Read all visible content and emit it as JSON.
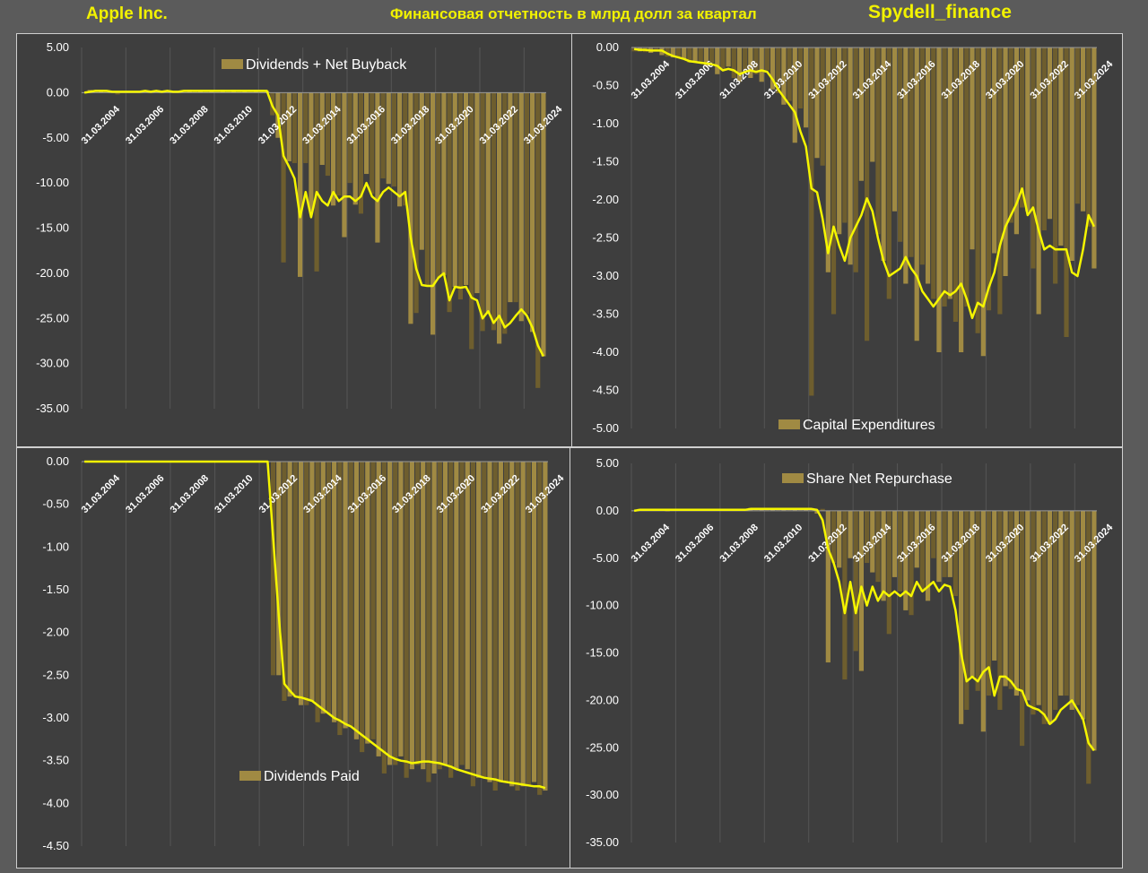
{
  "header": {
    "company": "Apple Inc.",
    "subtitle": "Финансовая отчетность в млрд долл за квартал",
    "source": "Spydell_finance"
  },
  "colors": {
    "bar": "#a08a43",
    "bar_dark": "#6e5e2e",
    "line": "#f5f500",
    "background": "#3e3e3e",
    "page": "#5b5b5b",
    "text": "#ffffff",
    "grid": "#555555"
  },
  "chart_data": [
    {
      "type": "bar",
      "legend": "Dividends + Net Buyback",
      "legend_position": "top-center",
      "ylim": [
        -35,
        5
      ],
      "y_ticks": [
        5,
        0,
        -5,
        -10,
        -15,
        -20,
        -25,
        -30,
        -35
      ],
      "y_tick_labels": [
        "5.00",
        "0.00",
        "-5.00",
        "-10.00",
        "-15.00",
        "-20.00",
        "-25.00",
        "-30.00",
        "-35.00"
      ],
      "x_tick_labels": [
        "31.03.2004",
        "31.03.2006",
        "31.03.2008",
        "31.03.2010",
        "31.03.2012",
        "31.03.2014",
        "31.03.2016",
        "31.03.2018",
        "31.03.2020",
        "31.03.2022",
        "31.03.2024"
      ],
      "quarters": 84,
      "values": [
        0,
        0.3,
        0.2,
        0.1,
        0.2,
        0.1,
        -0.2,
        0.1,
        0.2,
        0.1,
        0.1,
        0.2,
        0.1,
        0.2,
        0.1,
        0.2,
        0.1,
        0.1,
        0.2,
        0.3,
        0.1,
        0.2,
        0.1,
        0.2,
        0.1,
        0.3,
        0.2,
        0.3,
        0.3,
        0.2,
        0.3,
        0.3,
        0.3,
        0.2,
        -2.5,
        -5.0,
        -18.8,
        -7.6,
        -7.8,
        -20.4,
        -7.8,
        -13.1,
        -19.8,
        -8.0,
        -9.2,
        -12.5,
        -11.4,
        -16.0,
        -10.0,
        -12.4,
        -13.4,
        -9.0,
        -11.2,
        -16.6,
        -9.5,
        -10.1,
        -10.4,
        -12.6,
        -12.5,
        -25.6,
        -24.4,
        -17.4,
        -21.3,
        -26.8,
        -20.5,
        -20.2,
        -24.3,
        -21.5,
        -22.9,
        -21.3,
        -28.4,
        -22.2,
        -26.4,
        -24.5,
        -26.3,
        -27.8,
        -26.7,
        -23.2,
        -23.2,
        -25.3,
        -24.5,
        -26.5,
        -32.7,
        -29.2
      ],
      "trend": [
        0,
        0.1,
        0.2,
        0.2,
        0.2,
        0.1,
        0.1,
        0.1,
        0.1,
        0.1,
        0.1,
        0.2,
        0.1,
        0.2,
        0.1,
        0.2,
        0.1,
        0.1,
        0.2,
        0.2,
        0.2,
        0.2,
        0.2,
        0.2,
        0.2,
        0.2,
        0.2,
        0.2,
        0.2,
        0.2,
        0.2,
        0.2,
        0.2,
        0.2,
        -1.5,
        -2.5,
        -7.0,
        -8.2,
        -9.5,
        -13.8,
        -11.0,
        -13.8,
        -11.0,
        -12.0,
        -12.5,
        -11.0,
        -12.0,
        -11.5,
        -11.5,
        -12.0,
        -11.5,
        -10.0,
        -11.5,
        -12.0,
        -11.0,
        -10.5,
        -11.0,
        -11.5,
        -11.0,
        -16.0,
        -19.5,
        -21.3,
        -21.4,
        -21.4,
        -20.5,
        -20.0,
        -23.0,
        -21.5,
        -21.6,
        -21.5,
        -22.7,
        -23.0,
        -25.0,
        -24.2,
        -25.5,
        -24.7,
        -26.0,
        -25.5,
        -24.7,
        -24.0,
        -24.7,
        -26.0,
        -28.0,
        -29.2
      ]
    },
    {
      "type": "bar",
      "legend": "Capital Expenditures",
      "legend_position": "bottom-center",
      "ylim": [
        -5,
        0
      ],
      "y_ticks": [
        0,
        -0.5,
        -1,
        -1.5,
        -2,
        -2.5,
        -3,
        -3.5,
        -4,
        -4.5,
        -5
      ],
      "y_tick_labels": [
        "0.00",
        "-0.50",
        "-1.00",
        "-1.50",
        "-2.00",
        "-2.50",
        "-3.00",
        "-3.50",
        "-4.00",
        "-4.50",
        "-5.00"
      ],
      "x_tick_labels": [
        "31.03.2004",
        "31.03.2006",
        "31.03.2008",
        "31.03.2010",
        "31.03.2012",
        "31.03.2014",
        "31.03.2016",
        "31.03.2018",
        "31.03.2020",
        "31.03.2022",
        "31.03.2024"
      ],
      "quarters": 84,
      "values": [
        -0.05,
        -0.05,
        -0.06,
        -0.07,
        -0.05,
        -0.1,
        -0.12,
        -0.13,
        -0.12,
        -0.15,
        -0.2,
        -0.18,
        -0.2,
        -0.25,
        -0.2,
        -0.35,
        -0.3,
        -0.25,
        -0.4,
        -0.45,
        -0.3,
        -0.4,
        -0.35,
        -0.45,
        -0.3,
        -0.55,
        -0.6,
        -0.75,
        -0.7,
        -1.25,
        -0.8,
        -1.05,
        -4.57,
        -1.45,
        -1.55,
        -2.95,
        -3.5,
        -2.45,
        -2.3,
        -2.85,
        -2.95,
        -1.75,
        -3.85,
        -1.5,
        -2.45,
        -2.8,
        -3.3,
        -2.15,
        -2.55,
        -3.1,
        -2.75,
        -3.85,
        -2.85,
        -3.1,
        -3.3,
        -4.0,
        -3.4,
        -3.3,
        -3.6,
        -4.0,
        -3.4,
        -2.65,
        -3.75,
        -4.05,
        -3.45,
        -2.7,
        -3.5,
        -3.0,
        -2.3,
        -2.45,
        -2.1,
        -2.15,
        -2.9,
        -3.5,
        -2.4,
        -2.25,
        -3.1,
        -2.6,
        -3.8,
        -2.8,
        -2.05,
        -2.15,
        -2.35,
        -2.9
      ],
      "trend": [
        -0.02,
        -0.03,
        -0.03,
        -0.04,
        -0.04,
        -0.04,
        -0.08,
        -0.11,
        -0.13,
        -0.15,
        -0.18,
        -0.19,
        -0.2,
        -0.21,
        -0.22,
        -0.24,
        -0.3,
        -0.28,
        -0.3,
        -0.35,
        -0.32,
        -0.3,
        -0.32,
        -0.3,
        -0.32,
        -0.42,
        -0.55,
        -0.65,
        -0.75,
        -0.85,
        -1.1,
        -1.3,
        -1.85,
        -1.9,
        -2.25,
        -2.7,
        -2.35,
        -2.6,
        -2.8,
        -2.5,
        -2.35,
        -2.2,
        -1.98,
        -2.15,
        -2.5,
        -2.8,
        -3.0,
        -2.95,
        -2.9,
        -2.75,
        -2.9,
        -3.0,
        -3.2,
        -3.3,
        -3.4,
        -3.3,
        -3.2,
        -3.25,
        -3.2,
        -3.1,
        -3.3,
        -3.55,
        -3.35,
        -3.4,
        -3.15,
        -2.95,
        -2.6,
        -2.35,
        -2.2,
        -2.05,
        -1.85,
        -2.2,
        -2.1,
        -2.4,
        -2.65,
        -2.6,
        -2.65,
        -2.65,
        -2.65,
        -2.95,
        -3.0,
        -2.65,
        -2.2,
        -2.35
      ]
    },
    {
      "type": "bar",
      "legend": "Dividends Paid",
      "legend_position": "center-left",
      "ylim": [
        -4.5,
        0
      ],
      "y_ticks": [
        0,
        -0.5,
        -1,
        -1.5,
        -2,
        -2.5,
        -3,
        -3.5,
        -4,
        -4.5
      ],
      "y_tick_labels": [
        "0.00",
        "-0.50",
        "-1.00",
        "-1.50",
        "-2.00",
        "-2.50",
        "-3.00",
        "-3.50",
        "-4.00",
        "-4.50"
      ],
      "x_tick_labels": [
        "31.03.2004",
        "31.03.2006",
        "31.03.2008",
        "31.03.2010",
        "31.03.2012",
        "31.03.2014",
        "31.03.2016",
        "31.03.2018",
        "31.03.2020",
        "31.03.2022",
        "31.03.2024"
      ],
      "quarters": 84,
      "values": [
        0,
        0,
        0,
        0,
        0,
        0,
        0,
        0,
        0,
        0,
        0,
        0,
        0,
        0,
        0,
        0,
        0,
        0,
        0,
        0,
        0,
        0,
        0,
        0,
        0,
        0,
        0,
        0,
        0,
        0,
        0,
        0,
        0,
        0,
        -2.5,
        -2.5,
        -2.8,
        -2.75,
        -2.76,
        -2.85,
        -2.85,
        -2.8,
        -3.05,
        -2.95,
        -2.95,
        -3.05,
        -3.2,
        -3.12,
        -3.1,
        -3.25,
        -3.4,
        -3.3,
        -3.25,
        -3.45,
        -3.65,
        -3.55,
        -3.55,
        -3.45,
        -3.7,
        -3.6,
        -3.55,
        -3.6,
        -3.75,
        -3.65,
        -3.6,
        -3.55,
        -3.7,
        -3.6,
        -3.55,
        -3.6,
        -3.8,
        -3.7,
        -3.7,
        -3.75,
        -3.85,
        -3.75,
        -3.75,
        -3.8,
        -3.85,
        -3.8,
        -3.8,
        -3.75,
        -3.9,
        -3.85
      ],
      "trend": [
        0,
        0,
        0,
        0,
        0,
        0,
        0,
        0,
        0,
        0,
        0,
        0,
        0,
        0,
        0,
        0,
        0,
        0,
        0,
        0,
        0,
        0,
        0,
        0,
        0,
        0,
        0,
        0,
        0,
        0,
        0,
        0,
        0,
        0,
        -0.9,
        -1.8,
        -2.6,
        -2.68,
        -2.75,
        -2.76,
        -2.78,
        -2.8,
        -2.85,
        -2.9,
        -2.95,
        -3.0,
        -3.03,
        -3.07,
        -3.1,
        -3.15,
        -3.2,
        -3.25,
        -3.3,
        -3.35,
        -3.4,
        -3.45,
        -3.48,
        -3.5,
        -3.51,
        -3.53,
        -3.52,
        -3.51,
        -3.51,
        -3.52,
        -3.53,
        -3.55,
        -3.57,
        -3.6,
        -3.62,
        -3.64,
        -3.66,
        -3.68,
        -3.7,
        -3.71,
        -3.72,
        -3.74,
        -3.75,
        -3.76,
        -3.77,
        -3.78,
        -3.79,
        -3.8,
        -3.8,
        -3.82
      ]
    },
    {
      "type": "bar",
      "legend": "Share Net Repurchase",
      "legend_position": "top-center",
      "ylim": [
        -35,
        5
      ],
      "y_ticks": [
        5,
        0,
        -5,
        -10,
        -15,
        -20,
        -25,
        -30,
        -35
      ],
      "y_tick_labels": [
        "5.00",
        "0.00",
        "-5.00",
        "-10.00",
        "-15.00",
        "-20.00",
        "-25.00",
        "-30.00",
        "-35.00"
      ],
      "x_tick_labels": [
        "31.03.2004",
        "31.03.2006",
        "31.03.2008",
        "31.03.2010",
        "31.03.2012",
        "31.03.2014",
        "31.03.2016",
        "31.03.2018",
        "31.03.2020",
        "31.03.2022",
        "31.03.2024"
      ],
      "quarters": 84,
      "values": [
        0,
        0.2,
        0.1,
        0.2,
        0.1,
        0.2,
        -0.1,
        0.1,
        0.2,
        0.1,
        0.1,
        0.2,
        0.1,
        0.2,
        0.1,
        0.1,
        0.2,
        0.1,
        0.2,
        0.1,
        0.1,
        0.3,
        0.2,
        0.3,
        0.1,
        0.2,
        0.3,
        0.2,
        0.1,
        0.2,
        0.3,
        0.2,
        0.3,
        -0.3,
        0.2,
        -16.0,
        -5.5,
        -6.0,
        -17.8,
        -5.0,
        -14.8,
        -16.9,
        -5.5,
        -6.5,
        -7.5,
        -9.5,
        -13.0,
        -7.0,
        -8.5,
        -10.5,
        -11.0,
        -6.0,
        -8.5,
        -9.5,
        -5.0,
        -7.5,
        -7.0,
        -7.0,
        -9.0,
        -22.5,
        -21.0,
        -17.5,
        -19.0,
        -23.3,
        -19.5,
        -15.8,
        -21.0,
        -18.5,
        -18.8,
        -19.5,
        -24.8,
        -20.0,
        -21.5,
        -20.5,
        -22.5,
        -22.5,
        -21.0,
        -19.5,
        -19.5,
        -21.0,
        -20.5,
        -22.0,
        -28.8,
        -25.3
      ],
      "trend": [
        0,
        0.1,
        0.1,
        0.1,
        0.1,
        0.1,
        0.1,
        0.1,
        0.1,
        0.1,
        0.1,
        0.1,
        0.1,
        0.1,
        0.1,
        0.1,
        0.1,
        0.1,
        0.1,
        0.1,
        0.1,
        0.2,
        0.2,
        0.2,
        0.2,
        0.2,
        0.2,
        0.2,
        0.2,
        0.2,
        0.2,
        0.2,
        0.2,
        0.1,
        -1.0,
        -4.0,
        -5.5,
        -7.5,
        -10.8,
        -7.5,
        -10.8,
        -8.0,
        -10.0,
        -8.0,
        -9.5,
        -8.5,
        -9.0,
        -8.5,
        -9.0,
        -8.5,
        -9.0,
        -7.5,
        -8.5,
        -8.0,
        -7.5,
        -8.5,
        -7.8,
        -8.0,
        -10.5,
        -15.0,
        -18.0,
        -17.5,
        -18.0,
        -17.0,
        -16.5,
        -19.5,
        -17.5,
        -17.5,
        -18.0,
        -18.8,
        -19.0,
        -20.5,
        -20.8,
        -21.0,
        -21.5,
        -22.5,
        -22.0,
        -21.0,
        -20.5,
        -20.0,
        -21.0,
        -22.0,
        -24.5,
        -25.3
      ]
    }
  ]
}
